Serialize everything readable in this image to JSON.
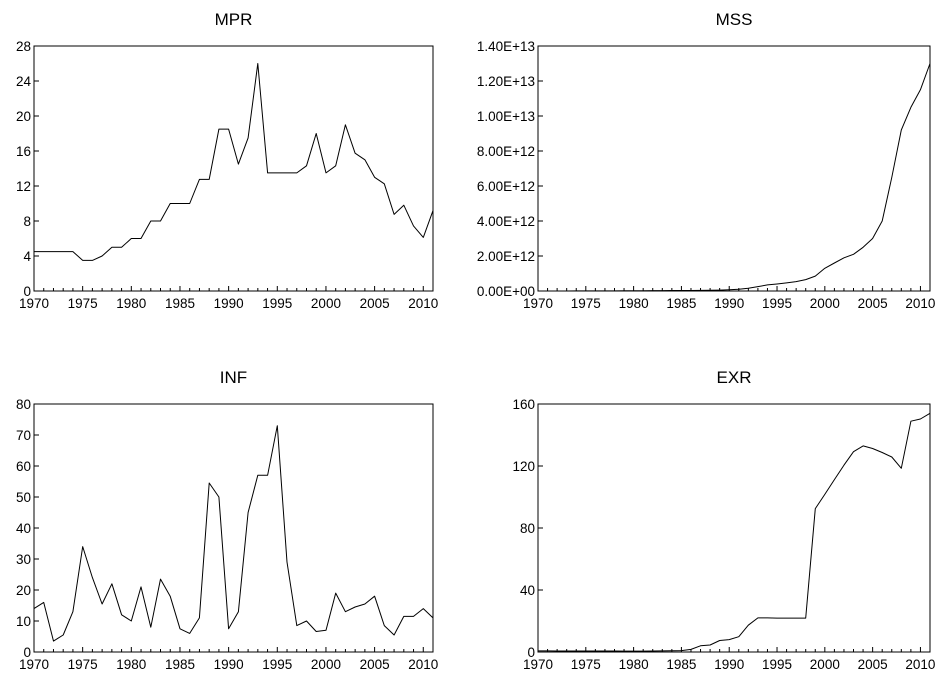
{
  "chart_data": [
    {
      "type": "line",
      "title": "MPR",
      "x": [
        1970,
        1971,
        1972,
        1973,
        1974,
        1975,
        1976,
        1977,
        1978,
        1979,
        1980,
        1981,
        1982,
        1983,
        1984,
        1985,
        1986,
        1987,
        1988,
        1989,
        1990,
        1991,
        1992,
        1993,
        1994,
        1995,
        1996,
        1997,
        1998,
        1999,
        2000,
        2001,
        2002,
        2003,
        2004,
        2005,
        2006,
        2007,
        2008,
        2009,
        2010,
        2011
      ],
      "values": [
        4.5,
        4.5,
        4.5,
        4.5,
        4.5,
        3.5,
        3.5,
        4,
        5,
        5,
        6,
        6,
        8,
        8,
        10,
        10,
        10,
        12.75,
        12.75,
        18.5,
        18.5,
        14.5,
        17.5,
        26,
        13.5,
        13.5,
        13.5,
        13.5,
        14.31,
        18,
        13.5,
        14.31,
        19,
        15.75,
        15,
        13,
        12.25,
        8.75,
        9.81,
        7.44,
        6.13,
        9.19
      ],
      "xlim": [
        1970,
        2011
      ],
      "ylim": [
        0,
        28
      ],
      "xticks": [
        "1970",
        "1975",
        "1980",
        "1985",
        "1990",
        "1995",
        "2000",
        "2005",
        "2010"
      ],
      "yticks": [
        "0",
        "4",
        "8",
        "12",
        "16",
        "20",
        "24",
        "28"
      ],
      "ytick_values": [
        0,
        4,
        8,
        12,
        16,
        20,
        24,
        28
      ]
    },
    {
      "type": "line",
      "title": "MSS",
      "x": [
        1970,
        1971,
        1972,
        1973,
        1974,
        1975,
        1976,
        1977,
        1978,
        1979,
        1980,
        1981,
        1982,
        1983,
        1984,
        1985,
        1986,
        1987,
        1988,
        1989,
        1990,
        1991,
        1992,
        1993,
        1994,
        1995,
        1996,
        1997,
        1998,
        1999,
        2000,
        2001,
        2002,
        2003,
        2004,
        2005,
        2006,
        2007,
        2008,
        2009,
        2010,
        2011
      ],
      "values": [
        1000000000.0,
        1500000000.0,
        2000000000.0,
        2500000000.0,
        3000000000.0,
        4000000000.0,
        5000000000.0,
        6500000000.0,
        8000000000.0,
        10000000000.0,
        15000000000.0,
        18000000000.0,
        20000000000.0,
        23000000000.0,
        26000000000.0,
        28000000000.0,
        30000000000.0,
        35000000000.0,
        45000000000.0,
        50000000000.0,
        70000000000.0,
        100000000000.0,
        160000000000.0,
        250000000000.0,
        350000000000.0,
        400000000000.0,
        460000000000.0,
        540000000000.0,
        650000000000.0,
        850000000000.0,
        1300000000000.0,
        1600000000000.0,
        1900000000000.0,
        2100000000000.0,
        2500000000000.0,
        3000000000000.0,
        4000000000000.0,
        6500000000000.0,
        9200000000000.0,
        10500000000000.0,
        11500000000000.0,
        13000000000000.0
      ],
      "xlim": [
        1970,
        2011
      ],
      "ylim": [
        0,
        14000000000000.0
      ],
      "xticks": [
        "1970",
        "1975",
        "1980",
        "1985",
        "1990",
        "1995",
        "2000",
        "2005",
        "2010"
      ],
      "yticks": [
        "0.00E+00",
        "2.00E+12",
        "4.00E+12",
        "6.00E+12",
        "8.00E+12",
        "1.00E+13",
        "1.20E+13",
        "1.40E+13"
      ],
      "ytick_values": [
        0,
        2000000000000.0,
        4000000000000.0,
        6000000000000.0,
        8000000000000.0,
        10000000000000.0,
        12000000000000.0,
        14000000000000.0
      ]
    },
    {
      "type": "line",
      "title": "INF",
      "x": [
        1970,
        1971,
        1972,
        1973,
        1974,
        1975,
        1976,
        1977,
        1978,
        1979,
        1980,
        1981,
        1982,
        1983,
        1984,
        1985,
        1986,
        1987,
        1988,
        1989,
        1990,
        1991,
        1992,
        1993,
        1994,
        1995,
        1996,
        1997,
        1998,
        1999,
        2000,
        2001,
        2002,
        2003,
        2004,
        2005,
        2006,
        2007,
        2008,
        2009,
        2010,
        2011
      ],
      "values": [
        14,
        16,
        3.5,
        5.5,
        13,
        34,
        24,
        15.5,
        22,
        12,
        10,
        21,
        8,
        23.5,
        18,
        7.5,
        6,
        11,
        54.5,
        50,
        7.5,
        13,
        45,
        57,
        57,
        73,
        29,
        8.5,
        10,
        6.6,
        7,
        19,
        13,
        14.5,
        15.5,
        18,
        8.5,
        5.5,
        11.5,
        11.5,
        14,
        11
      ],
      "xlim": [
        1970,
        2011
      ],
      "ylim": [
        0,
        80
      ],
      "xticks": [
        "1970",
        "1975",
        "1980",
        "1985",
        "1990",
        "1995",
        "2000",
        "2005",
        "2010"
      ],
      "yticks": [
        "0",
        "10",
        "20",
        "30",
        "40",
        "50",
        "60",
        "70",
        "80"
      ],
      "ytick_values": [
        0,
        10,
        20,
        30,
        40,
        50,
        60,
        70,
        80
      ]
    },
    {
      "type": "line",
      "title": "EXR",
      "x": [
        1970,
        1971,
        1972,
        1973,
        1974,
        1975,
        1976,
        1977,
        1978,
        1979,
        1980,
        1981,
        1982,
        1983,
        1984,
        1985,
        1986,
        1987,
        1988,
        1989,
        1990,
        1991,
        1992,
        1993,
        1994,
        1995,
        1996,
        1997,
        1998,
        1999,
        2000,
        2001,
        2002,
        2003,
        2004,
        2005,
        2006,
        2007,
        2008,
        2009,
        2010,
        2011
      ],
      "values": [
        0.7,
        0.7,
        0.66,
        0.66,
        0.63,
        0.62,
        0.63,
        0.65,
        0.64,
        0.6,
        0.55,
        0.61,
        0.67,
        0.72,
        0.77,
        0.9,
        1.7,
        4.0,
        4.5,
        7.4,
        8.0,
        9.9,
        17.3,
        22.0,
        22.0,
        21.9,
        21.9,
        21.9,
        21.9,
        92.5,
        101.7,
        111.2,
        120.6,
        129.2,
        133.0,
        131.3,
        128.7,
        125.8,
        118.5,
        148.9,
        150.3,
        154.0
      ],
      "xlim": [
        1970,
        2011
      ],
      "ylim": [
        0,
        160
      ],
      "xticks": [
        "1970",
        "1975",
        "1980",
        "1985",
        "1990",
        "1995",
        "2000",
        "2005",
        "2010"
      ],
      "yticks": [
        "0",
        "40",
        "80",
        "120",
        "160"
      ],
      "ytick_values": [
        0,
        40,
        80,
        120,
        160
      ]
    }
  ]
}
